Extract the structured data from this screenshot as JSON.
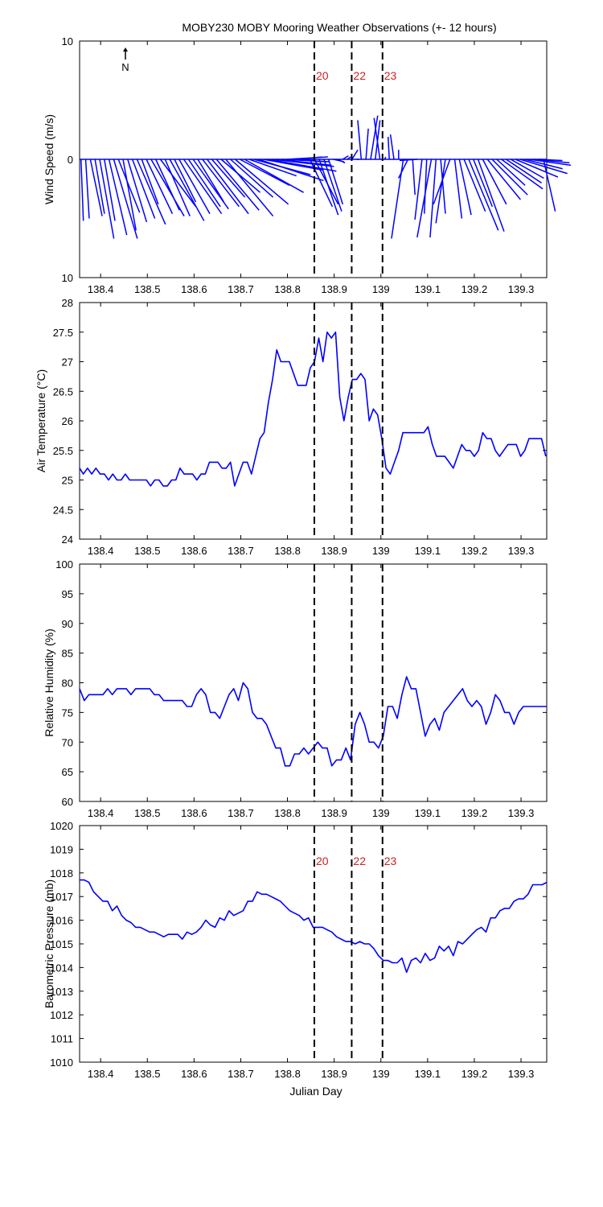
{
  "figure": {
    "title": "MOBY230 MOBY Mooring Weather Observations (+- 12 hours)",
    "xlabel": "Julian Day"
  },
  "colors": {
    "series": "#0000ff",
    "event_labels": "#cc2222",
    "axes": "#000000"
  },
  "north_arrow": {
    "label": "N"
  },
  "chart_data": [
    {
      "type": "stick-vector",
      "name": "wind",
      "ylabel": "Wind Speed (m/s)",
      "xlim": [
        138.355,
        139.355
      ],
      "ylim": [
        -10,
        10
      ],
      "ytick_labels": [
        "10",
        "0",
        "10"
      ],
      "xticks": [
        138.4,
        138.5,
        138.6,
        138.7,
        138.8,
        138.9,
        139.0,
        139.1,
        139.2,
        139.3
      ],
      "xtick_labels": [
        "138.4",
        "138.5",
        "138.6",
        "138.7",
        "138.8",
        "138.9",
        "139",
        "139.1",
        "139.2",
        "139.3"
      ],
      "event_lines": [
        138.8575,
        138.9375,
        139.0035
      ],
      "event_labels": [
        "20",
        "22",
        "23"
      ],
      "x": [
        138.358,
        138.368,
        138.378,
        138.388,
        138.398,
        138.408,
        138.418,
        138.428,
        138.438,
        138.448,
        138.458,
        138.468,
        138.478,
        138.488,
        138.498,
        138.508,
        138.518,
        138.528,
        138.538,
        138.548,
        138.558,
        138.568,
        138.578,
        138.588,
        138.598,
        138.608,
        138.618,
        138.628,
        138.638,
        138.648,
        138.658,
        138.668,
        138.678,
        138.688,
        138.698,
        138.708,
        138.718,
        138.728,
        138.738,
        138.748,
        138.758,
        138.768,
        138.778,
        138.788,
        138.798,
        138.808,
        138.818,
        138.828,
        138.838,
        138.848,
        138.858,
        138.868,
        138.878,
        138.888,
        138.898,
        138.908,
        138.918,
        138.928,
        138.938,
        138.948,
        138.958,
        138.968,
        138.978,
        138.988,
        138.998,
        139.008,
        139.018,
        139.028,
        139.038,
        139.048,
        139.058,
        139.068,
        139.078,
        139.088,
        139.098,
        139.108,
        139.118,
        139.128,
        139.138,
        139.148,
        139.158,
        139.168,
        139.178,
        139.188,
        139.198,
        139.208,
        139.218,
        139.228,
        139.238,
        139.248,
        139.258,
        139.268,
        139.278,
        139.288,
        139.298,
        139.308,
        139.318,
        139.328,
        139.338,
        139.348
      ],
      "u": [
        0.2,
        0.3,
        1.0,
        0.8,
        1.2,
        0.9,
        1.5,
        2.0,
        1.8,
        1.1,
        1.6,
        1.9,
        2.4,
        1.4,
        2.2,
        2.8,
        2.0,
        3.0,
        2.1,
        2.9,
        1.8,
        2.6,
        3.2,
        2.7,
        3.0,
        2.2,
        3.1,
        3.5,
        2.8,
        3.6,
        3.3,
        4.0,
        3.6,
        4.5,
        4.2,
        5.0,
        4.0,
        4.8,
        5.5,
        5.0,
        5.8,
        5.2,
        4.6,
        4.0,
        3.5,
        3.0,
        2.2,
        1.6,
        0.8,
        1.9,
        2.0,
        1.6,
        1.5,
        1.2,
        0.9,
        0.6,
        0.5,
        0.3,
        0.5,
        0.2,
        -0.3,
        0.2,
        0.6,
        0.4,
        -0.5,
        0.1,
        -0.1,
        -0.3,
        0.0,
        -1.0,
        -0.8,
        0.2,
        -1.5,
        -0.6,
        -0.2,
        -1.2,
        -0.5,
        0.4,
        -0.8,
        -1.4,
        0.6,
        1.0,
        1.8,
        2.5,
        1.6,
        2.2,
        2.0,
        2.8,
        3.0,
        2.4,
        3.5,
        3.0,
        2.8,
        3.6,
        4.0,
        3.2,
        3.5,
        3.0,
        2.0,
        1.0
      ],
      "v": [
        -5.2,
        -5.0,
        -4.8,
        -4.6,
        -6.7,
        -5.2,
        -6.4,
        -6.7,
        -4.5,
        -6.0,
        -5.3,
        -5.0,
        -5.5,
        -3.8,
        -4.6,
        -4.8,
        -4.3,
        -4.0,
        -4.8,
        -5.2,
        -3.6,
        -4.6,
        -4.6,
        -4.0,
        -4.2,
        -3.6,
        -4.0,
        -4.6,
        -3.2,
        -4.3,
        -2.8,
        -4.8,
        -3.2,
        -3.8,
        -2.2,
        -2.8,
        -1.4,
        -1.3,
        -1.8,
        -0.9,
        -1.0,
        -0.6,
        -0.5,
        -0.2,
        0.2,
        -0.2,
        0.2,
        -0.2,
        -0.1,
        -4.0,
        -3.8,
        -4.7,
        -4.4,
        -3.8,
        -0.2,
        -0.3,
        0.3,
        0.2,
        0.8,
        0.0,
        3.3,
        2.6,
        3.7,
        3.3,
        3.5,
        0.2,
        1.9,
        2.1,
        0.8,
        -6.7,
        -1.6,
        -3.0,
        -0.1,
        -5.1,
        -4.6,
        -6.6,
        -6.6,
        -4.6,
        -5.4,
        -3.8,
        -5.0,
        -4.7,
        -4.4,
        -6.0,
        -4.0,
        -6.1,
        -3.8,
        -3.4,
        -3.0,
        -2.2,
        -2.5,
        -2.0,
        -1.6,
        -1.5,
        -1.2,
        -0.8,
        -0.5,
        -0.3,
        -0.1,
        -4.4
      ]
    },
    {
      "type": "line",
      "name": "air-temperature",
      "ylabel": "Air Temperature (°C)",
      "xlim": [
        138.355,
        139.355
      ],
      "ylim": [
        24,
        28
      ],
      "yticks": [
        24,
        24.5,
        25,
        25.5,
        26,
        26.5,
        27,
        27.5,
        28
      ],
      "ytick_labels": [
        "24",
        "24.5",
        "25",
        "25.5",
        "26",
        "26.5",
        "27",
        "27.5",
        "28"
      ],
      "xticks": [
        138.4,
        138.5,
        138.6,
        138.7,
        138.8,
        138.9,
        139.0,
        139.1,
        139.2,
        139.3
      ],
      "xtick_labels": [
        "138.4",
        "138.5",
        "138.6",
        "138.7",
        "138.8",
        "138.9",
        "139",
        "139.1",
        "139.2",
        "139.3"
      ],
      "event_lines": [
        138.8575,
        138.9375,
        139.0035
      ],
      "x": [
        138.355,
        138.363,
        138.372,
        138.381,
        138.39,
        138.399,
        138.408,
        138.417,
        138.426,
        138.435,
        138.444,
        138.453,
        138.462,
        138.471,
        138.48,
        138.489,
        138.498,
        138.507,
        138.516,
        138.525,
        138.534,
        138.543,
        138.552,
        138.561,
        138.57,
        138.579,
        138.588,
        138.597,
        138.606,
        138.615,
        138.624,
        138.633,
        138.642,
        138.651,
        138.66,
        138.669,
        138.678,
        138.687,
        138.696,
        138.705,
        138.714,
        138.723,
        138.732,
        138.741,
        138.75,
        138.759,
        138.768,
        138.777,
        138.786,
        138.795,
        138.804,
        138.813,
        138.822,
        138.831,
        138.84,
        138.849,
        138.858,
        138.867,
        138.876,
        138.885,
        138.894,
        138.903,
        138.912,
        138.921,
        138.93,
        138.939,
        138.948,
        138.957,
        138.966,
        138.975,
        138.984,
        138.993,
        139.002,
        139.011,
        139.02,
        139.029,
        139.038,
        139.047,
        139.056,
        139.065,
        139.074,
        139.083,
        139.092,
        139.101,
        139.11,
        139.119,
        139.128,
        139.137,
        139.146,
        139.155,
        139.164,
        139.173,
        139.182,
        139.191,
        139.2,
        139.209,
        139.218,
        139.227,
        139.236,
        139.245,
        139.254,
        139.263,
        139.272,
        139.281,
        139.29,
        139.299,
        139.308,
        139.317,
        139.326,
        139.335,
        139.344,
        139.353
      ],
      "y": [
        25.2,
        25.1,
        25.2,
        25.1,
        25.2,
        25.1,
        25.1,
        25.0,
        25.1,
        25.0,
        25.0,
        25.1,
        25.0,
        25.0,
        25.0,
        25.0,
        25.0,
        24.9,
        25.0,
        25.0,
        24.9,
        24.9,
        25.0,
        25.0,
        25.2,
        25.1,
        25.1,
        25.1,
        25.0,
        25.1,
        25.1,
        25.3,
        25.3,
        25.3,
        25.2,
        25.2,
        25.3,
        24.9,
        25.1,
        25.3,
        25.3,
        25.1,
        25.4,
        25.7,
        25.8,
        26.3,
        26.7,
        27.2,
        27.0,
        27.0,
        27.0,
        26.8,
        26.6,
        26.6,
        26.6,
        26.9,
        27.0,
        27.4,
        27.0,
        27.5,
        27.4,
        27.5,
        26.4,
        26.0,
        26.4,
        26.7,
        26.7,
        26.8,
        26.7,
        26.0,
        26.2,
        26.1,
        25.7,
        25.2,
        25.1,
        25.3,
        25.5,
        25.8,
        25.8,
        25.8,
        25.8,
        25.8,
        25.8,
        25.9,
        25.6,
        25.4,
        25.4,
        25.4,
        25.3,
        25.2,
        25.4,
        25.6,
        25.5,
        25.5,
        25.4,
        25.5,
        25.8,
        25.7,
        25.7,
        25.5,
        25.4,
        25.5,
        25.6,
        25.6,
        25.6,
        25.4,
        25.5,
        25.7,
        25.7,
        25.7,
        25.7,
        25.4
      ]
    },
    {
      "type": "line",
      "name": "relative-humidity",
      "ylabel": "Relative Humidity (%)",
      "xlim": [
        138.355,
        139.355
      ],
      "ylim": [
        60,
        100
      ],
      "yticks": [
        60,
        65,
        70,
        75,
        80,
        85,
        90,
        95,
        100
      ],
      "ytick_labels": [
        "60",
        "65",
        "70",
        "75",
        "80",
        "85",
        "90",
        "95",
        "100"
      ],
      "xticks": [
        138.4,
        138.5,
        138.6,
        138.7,
        138.8,
        138.9,
        139.0,
        139.1,
        139.2,
        139.3
      ],
      "xtick_labels": [
        "138.4",
        "138.5",
        "138.6",
        "138.7",
        "138.8",
        "138.9",
        "139",
        "139.1",
        "139.2",
        "139.3"
      ],
      "event_lines": [
        138.8575,
        138.9375,
        139.0035
      ],
      "x": [
        138.355,
        138.365,
        138.375,
        138.385,
        138.395,
        138.405,
        138.415,
        138.425,
        138.435,
        138.445,
        138.455,
        138.465,
        138.475,
        138.485,
        138.495,
        138.505,
        138.515,
        138.525,
        138.535,
        138.545,
        138.555,
        138.565,
        138.575,
        138.585,
        138.595,
        138.605,
        138.615,
        138.625,
        138.635,
        138.645,
        138.655,
        138.665,
        138.675,
        138.685,
        138.695,
        138.705,
        138.715,
        138.725,
        138.735,
        138.745,
        138.755,
        138.765,
        138.775,
        138.785,
        138.795,
        138.805,
        138.815,
        138.825,
        138.835,
        138.845,
        138.855,
        138.865,
        138.875,
        138.885,
        138.895,
        138.905,
        138.915,
        138.925,
        138.935,
        138.945,
        138.955,
        138.965,
        138.975,
        138.985,
        138.995,
        139.005,
        139.015,
        139.025,
        139.035,
        139.045,
        139.055,
        139.065,
        139.075,
        139.085,
        139.095,
        139.105,
        139.115,
        139.125,
        139.135,
        139.145,
        139.155,
        139.165,
        139.175,
        139.185,
        139.195,
        139.205,
        139.215,
        139.225,
        139.235,
        139.245,
        139.255,
        139.265,
        139.275,
        139.285,
        139.295,
        139.305,
        139.315,
        139.325,
        139.335,
        139.345,
        139.355
      ],
      "y": [
        79,
        77,
        78,
        78,
        78,
        78,
        79,
        78,
        79,
        79,
        79,
        78,
        79,
        79,
        79,
        79,
        78,
        78,
        77,
        77,
        77,
        77,
        77,
        76,
        76,
        78,
        79,
        78,
        75,
        75,
        74,
        76,
        78,
        79,
        77,
        80,
        79,
        75,
        74,
        74,
        73,
        71,
        69,
        69,
        66,
        66,
        68,
        68,
        69,
        68,
        69,
        70,
        69,
        69,
        66,
        67,
        67,
        69,
        67,
        73,
        75,
        73,
        70,
        70,
        69,
        71,
        76,
        76,
        74,
        78,
        81,
        79,
        79,
        75,
        71,
        73,
        74,
        72,
        75,
        76,
        77,
        78,
        79,
        77,
        76,
        77,
        76,
        73,
        75,
        78,
        77,
        75,
        75,
        73,
        75,
        76,
        76,
        76,
        76,
        76,
        76
      ]
    },
    {
      "type": "line",
      "name": "barometric-pressure",
      "ylabel": "Barometric Pressure (mb)",
      "xlim": [
        138.355,
        139.355
      ],
      "ylim": [
        1010,
        1020
      ],
      "yticks": [
        1010,
        1011,
        1012,
        1013,
        1014,
        1015,
        1016,
        1017,
        1018,
        1019,
        1020
      ],
      "ytick_labels": [
        "1010",
        "1011",
        "1012",
        "1013",
        "1014",
        "1015",
        "1016",
        "1017",
        "1018",
        "1019",
        "1020"
      ],
      "xticks": [
        138.4,
        138.5,
        138.6,
        138.7,
        138.8,
        138.9,
        139.0,
        139.1,
        139.2,
        139.3
      ],
      "xtick_labels": [
        "138.4",
        "138.5",
        "138.6",
        "138.7",
        "138.8",
        "138.9",
        "139",
        "139.1",
        "139.2",
        "139.3"
      ],
      "event_lines": [
        138.8575,
        138.9375,
        139.0035
      ],
      "event_labels": [
        "20",
        "22",
        "23"
      ],
      "x": [
        138.355,
        138.365,
        138.375,
        138.385,
        138.395,
        138.405,
        138.415,
        138.425,
        138.435,
        138.445,
        138.455,
        138.465,
        138.475,
        138.485,
        138.495,
        138.505,
        138.515,
        138.525,
        138.535,
        138.545,
        138.555,
        138.565,
        138.575,
        138.585,
        138.595,
        138.605,
        138.615,
        138.625,
        138.635,
        138.645,
        138.655,
        138.665,
        138.675,
        138.685,
        138.695,
        138.705,
        138.715,
        138.725,
        138.735,
        138.745,
        138.755,
        138.765,
        138.775,
        138.785,
        138.795,
        138.805,
        138.815,
        138.825,
        138.835,
        138.845,
        138.855,
        138.865,
        138.875,
        138.885,
        138.895,
        138.905,
        138.915,
        138.925,
        138.935,
        138.945,
        138.955,
        138.965,
        138.975,
        138.985,
        138.995,
        139.005,
        139.015,
        139.025,
        139.035,
        139.045,
        139.055,
        139.065,
        139.075,
        139.085,
        139.095,
        139.105,
        139.115,
        139.125,
        139.135,
        139.145,
        139.155,
        139.165,
        139.175,
        139.185,
        139.195,
        139.205,
        139.215,
        139.225,
        139.235,
        139.245,
        139.255,
        139.265,
        139.275,
        139.285,
        139.295,
        139.305,
        139.315,
        139.325,
        139.335,
        139.345,
        139.355
      ],
      "y": [
        1017.7,
        1017.7,
        1017.6,
        1017.2,
        1017.0,
        1016.8,
        1016.8,
        1016.4,
        1016.6,
        1016.2,
        1016.0,
        1015.9,
        1015.7,
        1015.7,
        1015.6,
        1015.5,
        1015.5,
        1015.4,
        1015.3,
        1015.4,
        1015.4,
        1015.4,
        1015.2,
        1015.5,
        1015.4,
        1015.5,
        1015.7,
        1016.0,
        1015.8,
        1015.7,
        1016.1,
        1016.0,
        1016.4,
        1016.2,
        1016.3,
        1016.4,
        1016.8,
        1016.8,
        1017.2,
        1017.1,
        1017.1,
        1017.0,
        1016.9,
        1016.8,
        1016.6,
        1016.4,
        1016.3,
        1016.2,
        1016.0,
        1016.1,
        1015.7,
        1015.7,
        1015.7,
        1015.6,
        1015.5,
        1015.3,
        1015.2,
        1015.1,
        1015.1,
        1015.0,
        1015.1,
        1015.0,
        1015.0,
        1014.8,
        1014.5,
        1014.3,
        1014.3,
        1014.2,
        1014.2,
        1014.4,
        1013.8,
        1014.3,
        1014.4,
        1014.2,
        1014.6,
        1014.3,
        1014.4,
        1014.9,
        1014.7,
        1014.9,
        1014.5,
        1015.1,
        1015.0,
        1015.2,
        1015.4,
        1015.6,
        1015.7,
        1015.5,
        1016.1,
        1016.1,
        1016.4,
        1016.5,
        1016.5,
        1016.8,
        1016.9,
        1016.9,
        1017.1,
        1017.5,
        1017.5,
        1017.5,
        1017.6
      ]
    }
  ]
}
